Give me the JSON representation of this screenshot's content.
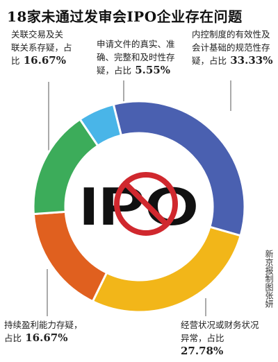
{
  "title": "18家未通过发审会IPO企业存在问题",
  "center_logo": {
    "text": "IPO",
    "icon": "prohibited-sign-icon",
    "sign_color": "#d0282e"
  },
  "credit": "新京报制图张妍",
  "colors": {
    "internal_control": "#4a60b0",
    "operating": "#f2b619",
    "profitability": "#e0601f",
    "related_party": "#3cac5a",
    "disclosure": "#49b5e8"
  },
  "chart_data": {
    "type": "pie",
    "donut": true,
    "title": "18家未通过发审会IPO企业存在问题",
    "slices": [
      {
        "key": "internal_control",
        "label_lines": [
          "内控制度的有效性及",
          "会计基础的规范性存",
          "疑，占比"
        ],
        "value": 33.33,
        "value_label": "33.33%"
      },
      {
        "key": "operating",
        "label_lines": [
          "经营状况或财务状况",
          "异常，占比"
        ],
        "value": 27.78,
        "value_label": "27.78%"
      },
      {
        "key": "profitability",
        "label_lines": [
          "持续盈利能力存疑，",
          "占比"
        ],
        "value": 16.67,
        "value_label": "16.67%"
      },
      {
        "key": "related_party",
        "label_lines": [
          "关联交易及关",
          "联关系存疑，占",
          "比"
        ],
        "value": 16.67,
        "value_label": "16.67%"
      },
      {
        "key": "disclosure",
        "label_lines": [
          "申请文件的真实、准",
          "确、完整和及时性存",
          "疑，占比"
        ],
        "value": 5.55,
        "value_label": "5.55%"
      }
    ]
  }
}
